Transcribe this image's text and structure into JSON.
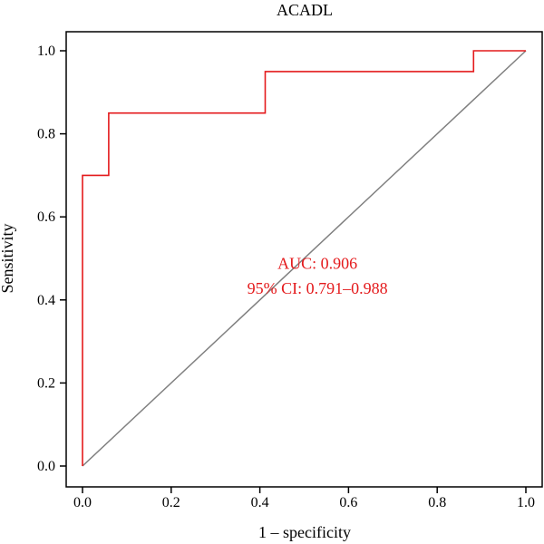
{
  "chart_data": {
    "type": "line",
    "title": "ACADL",
    "xlabel": "1 – specificity",
    "ylabel": "Sensitivity",
    "xlim": [
      0,
      1
    ],
    "ylim": [
      0,
      1
    ],
    "x_ticks": [
      "0.0",
      "0.2",
      "0.4",
      "0.6",
      "0.8",
      "1.0"
    ],
    "y_ticks": [
      "0.0",
      "0.2",
      "0.4",
      "0.6",
      "0.8",
      "1.0"
    ],
    "grid": false,
    "series": [
      {
        "x": [
          0,
          0,
          0.059,
          0.059,
          0.412,
          0.412,
          0.882,
          0.882,
          1.0
        ],
        "y": [
          0,
          0.7,
          0.7,
          0.85,
          0.85,
          0.95,
          0.95,
          1.0,
          1.0
        ],
        "color": "#e41a1c"
      }
    ],
    "reference_line": {
      "x": [
        0,
        1
      ],
      "y": [
        0,
        1
      ],
      "color": "#808080"
    },
    "annotations": [
      {
        "text": "AUC: 0.906",
        "x": 0.53,
        "y": 0.475,
        "color": "#e41a1c"
      },
      {
        "text": "95% CI: 0.791–0.988",
        "x": 0.53,
        "y": 0.415,
        "color": "#e41a1c"
      }
    ]
  }
}
